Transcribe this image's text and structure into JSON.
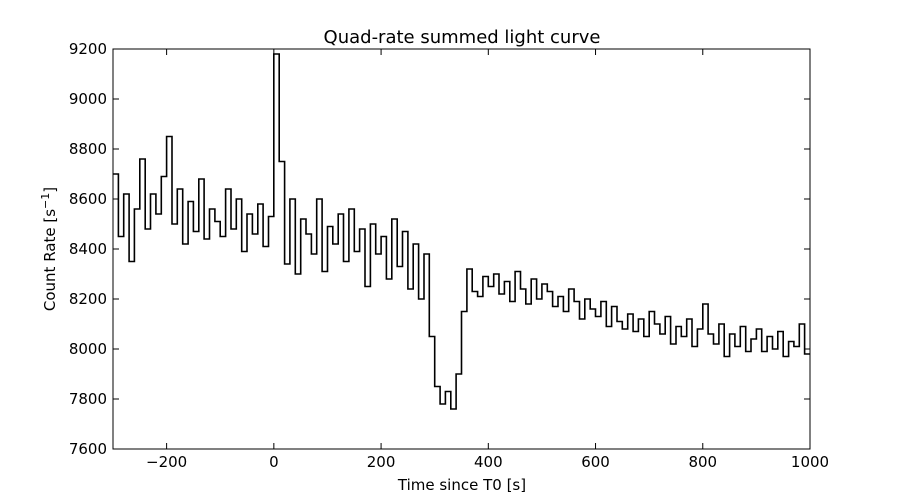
{
  "chart_data": {
    "type": "line",
    "drawstyle": "steps",
    "title": "Quad-rate summed light curve",
    "xlabel": "Time since T0 [s]",
    "ylabel_main": "Count Rate [s",
    "ylabel_sup": "−1",
    "ylabel_close": "]",
    "xlim": [
      -300,
      1000
    ],
    "ylim": [
      7600,
      9200
    ],
    "xticks": [
      -200,
      0,
      200,
      400,
      600,
      800,
      1000
    ],
    "xtick_labels": [
      "−200",
      "0",
      "200",
      "400",
      "600",
      "800",
      "1000"
    ],
    "yticks": [
      7600,
      7800,
      8000,
      8200,
      8400,
      8600,
      8800,
      9000,
      9200
    ],
    "ytick_labels": [
      "7600",
      "7800",
      "8000",
      "8200",
      "8400",
      "8600",
      "8800",
      "9000",
      "9200"
    ],
    "grid": false,
    "line_color": "#000000",
    "series": [
      {
        "x": [
          -300,
          -290,
          -280,
          -270,
          -260,
          -250,
          -240,
          -230,
          -220,
          -210,
          -200,
          -190,
          -180,
          -170,
          -160,
          -150,
          -140,
          -130,
          -120,
          -110,
          -100,
          -90,
          -80,
          -70,
          -60,
          -50,
          -40,
          -30,
          -20,
          -10,
          0,
          10,
          20,
          30,
          40,
          50,
          60,
          70,
          80,
          90,
          100,
          110,
          120,
          130,
          140,
          150,
          160,
          170,
          180,
          190,
          200,
          210,
          220,
          230,
          240,
          250,
          260,
          270,
          280,
          290,
          300,
          310,
          320,
          330,
          340,
          350,
          360,
          370,
          380,
          390,
          400,
          410,
          420,
          430,
          440,
          450,
          460,
          470,
          480,
          490,
          500,
          510,
          520,
          530,
          540,
          550,
          560,
          570,
          580,
          590,
          600,
          610,
          620,
          630,
          640,
          650,
          660,
          670,
          680,
          690,
          700,
          710,
          720,
          730,
          740,
          750,
          760,
          770,
          780,
          790,
          800,
          810,
          820,
          830,
          840,
          850,
          860,
          870,
          880,
          890,
          900,
          910,
          920,
          930,
          940,
          950,
          960,
          970,
          980,
          990
        ],
        "y": [
          8700,
          8450,
          8620,
          8350,
          8560,
          8760,
          8480,
          8620,
          8540,
          8690,
          8850,
          8500,
          8640,
          8420,
          8590,
          8470,
          8680,
          8440,
          8560,
          8510,
          8450,
          8640,
          8480,
          8600,
          8390,
          8540,
          8460,
          8580,
          8410,
          8530,
          9180,
          8750,
          8340,
          8600,
          8300,
          8520,
          8460,
          8380,
          8600,
          8310,
          8490,
          8420,
          8540,
          8350,
          8560,
          8390,
          8480,
          8250,
          8500,
          8380,
          8450,
          8280,
          8520,
          8330,
          8470,
          8240,
          8420,
          8200,
          8380,
          8050,
          7850,
          7780,
          7830,
          7760,
          7900,
          8150,
          8320,
          8230,
          8210,
          8290,
          8250,
          8300,
          8220,
          8270,
          8190,
          8310,
          8240,
          8180,
          8280,
          8200,
          8260,
          8230,
          8170,
          8210,
          8150,
          8240,
          8190,
          8120,
          8200,
          8160,
          8130,
          8190,
          8090,
          8170,
          8110,
          8080,
          8140,
          8070,
          8120,
          8050,
          8150,
          8100,
          8060,
          8130,
          8020,
          8090,
          8050,
          8120,
          8010,
          8080,
          8180,
          8060,
          8020,
          8100,
          7970,
          8060,
          8010,
          8090,
          7990,
          8040,
          8080,
          7990,
          8050,
          8000,
          8070,
          7970,
          8030,
          8010,
          8100,
          7980
        ]
      }
    ]
  }
}
